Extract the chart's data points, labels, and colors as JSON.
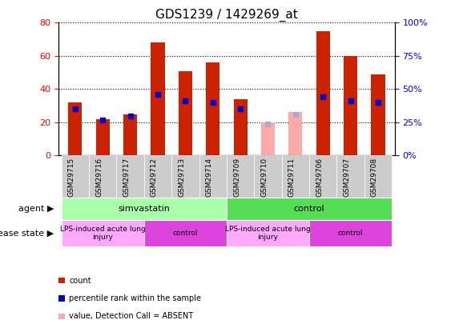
{
  "title": "GDS1239 / 1429269_at",
  "samples": [
    "GSM29715",
    "GSM29716",
    "GSM29717",
    "GSM29712",
    "GSM29713",
    "GSM29714",
    "GSM29709",
    "GSM29710",
    "GSM29711",
    "GSM29706",
    "GSM29707",
    "GSM29708"
  ],
  "count_values": [
    32,
    22,
    25,
    68,
    51,
    56,
    34,
    null,
    null,
    75,
    60,
    49
  ],
  "percentile_values": [
    35,
    27,
    30,
    46,
    41,
    40,
    35,
    null,
    null,
    44,
    41,
    40
  ],
  "absent_count_values": [
    null,
    null,
    null,
    null,
    null,
    null,
    null,
    20,
    26,
    null,
    null,
    null
  ],
  "absent_rank_values": [
    null,
    null,
    null,
    null,
    null,
    null,
    null,
    24,
    31,
    null,
    null,
    null
  ],
  "count_color": "#cc2200",
  "percentile_color": "#0000cc",
  "absent_count_color": "#ffaaaa",
  "absent_rank_color": "#aaaacc",
  "ylim_left": [
    0,
    80
  ],
  "ylim_right": [
    0,
    100
  ],
  "yticks_left": [
    0,
    20,
    40,
    60,
    80
  ],
  "yticks_right": [
    0,
    25,
    50,
    75,
    100
  ],
  "yticklabels_right": [
    "0%",
    "25%",
    "50%",
    "75%",
    "100%"
  ],
  "agent_groups": [
    {
      "label": "simvastatin",
      "start": 0,
      "end": 6,
      "color": "#aaffaa"
    },
    {
      "label": "control",
      "start": 6,
      "end": 12,
      "color": "#55dd55"
    }
  ],
  "disease_groups": [
    {
      "label": "LPS-induced acute lung\ninjury",
      "start": 0,
      "end": 3,
      "color": "#ffaaff"
    },
    {
      "label": "control",
      "start": 3,
      "end": 6,
      "color": "#dd44dd"
    },
    {
      "label": "LPS-induced acute lung\ninjury",
      "start": 6,
      "end": 9,
      "color": "#ffaaff"
    },
    {
      "label": "control",
      "start": 9,
      "end": 12,
      "color": "#dd44dd"
    }
  ],
  "bar_width": 0.5,
  "tick_area_color": "#cccccc",
  "background_color": "#ffffff"
}
